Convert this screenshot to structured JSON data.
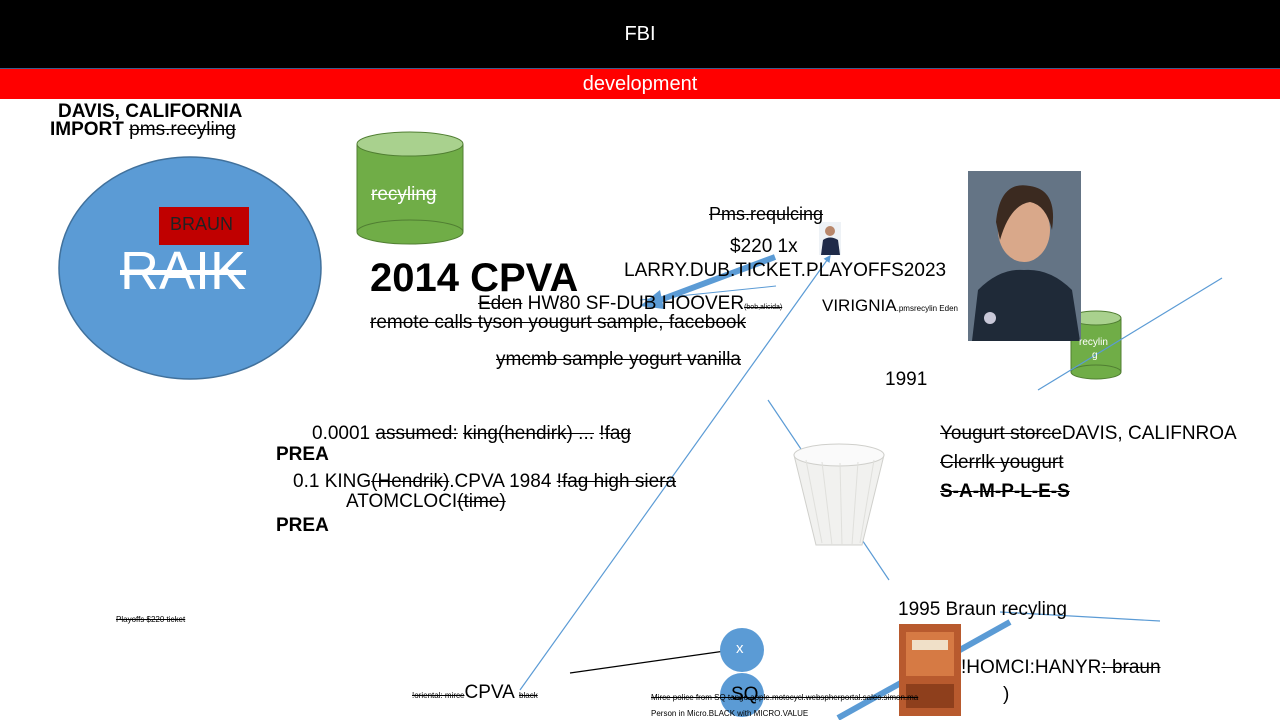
{
  "header": {
    "title": "FBI",
    "subtitle": "development"
  },
  "colors": {
    "title_bg": "#000000",
    "subtitle_bg": "#ff0000",
    "ellipse": "#5b9bd5",
    "cylinder_body": "#70ad47",
    "cylinder_top": "#a9d18e",
    "braun_box": "#c00000",
    "connector": "#5b9bd5"
  },
  "top_left": {
    "line1": "DAVIS, CALIFORNIA",
    "import_word": "IMPORT",
    "import_struck": "pms.recyling"
  },
  "ellipse": {
    "braun_label": "BRAUN",
    "raik_label": "RAIK"
  },
  "cylinder_large": {
    "label": "recyling"
  },
  "cylinder_small": {
    "label_line1": "recylin",
    "label_line2": "g"
  },
  "center": {
    "big_title": "2014 CPVA",
    "pms_requlcing": "Pms.requlcing",
    "price": "$220 1x",
    "ticket": "LARRY.DUB.TICKET.PLAYOFFS2023",
    "eden_struck": "Eden",
    "hw80": "HW80 SF-DUB HOOVER",
    "bob_small": "(bob,alicida)",
    "virignia": "VIRIGNIA",
    "pms_small": ".pmsrecylin Eden",
    "remote_calls": "remote calls tyson yougurt sample, facebook",
    "ymcmb": "ymcmb sample yogurt vanilla"
  },
  "year_1991": "1991",
  "left_block": {
    "num1": "0.0001",
    "assumed": "assumed:",
    "king1": "king(hendirk) ...",
    "fag1": "!fag",
    "prea1": "PREA",
    "num2": "0.1 KING",
    "hendrik": "(Hendrik)",
    "cpva1984": ".CPVA 1984",
    "fag2": "!fag high siera",
    "atom": "ATOMCLOCI",
    "time": "(time)",
    "prea2": "PREA"
  },
  "right_block": {
    "yogurt_store": "Yougurt storce",
    "davis": "DAVIS, CALIFNROA",
    "clerk": "Clerrlk yougurt",
    "samples": "S-A-M-P-L-E-S"
  },
  "bottom_left": {
    "playoffs": "Playoffs $220 ticket"
  },
  "bottom_center": {
    "oriental": "!oriental: mirce",
    "cpva": "CPVA",
    "black": "black",
    "x_label": "x",
    "sq_label": "SQ",
    "mirce_line": "Mirce police from SQ tango apple.motocycl.webspherportal.sales.simon.ma",
    "person_line": "Person in Micro.BLACK with MICRO.VALUE",
    "close_paren": ")"
  },
  "bottom_right": {
    "year_1995": "1995 Braun recyling",
    "homci": "!HOMCI:HANYR",
    "braun_struck": ": braun"
  }
}
